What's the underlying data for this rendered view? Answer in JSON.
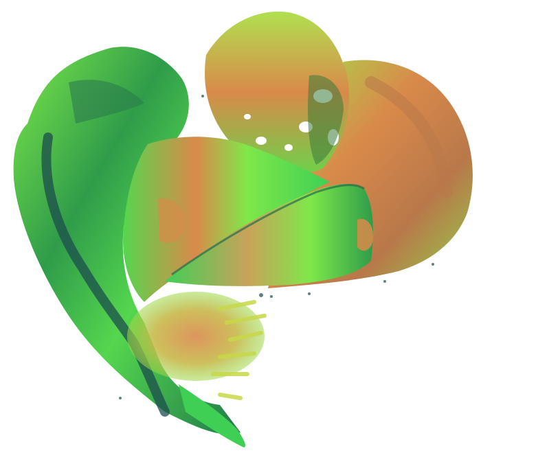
{
  "scene": {
    "background": "#ffffff",
    "palette": {
      "green_bright": "#7ee84a",
      "green_mid": "#3fcf55",
      "green_dark": "#1e7a4a",
      "teal_shadow": "#1b4e4c",
      "yellow": "#c8d84a",
      "orange": "#d98a4a",
      "brown": "#9b5a3a"
    }
  }
}
